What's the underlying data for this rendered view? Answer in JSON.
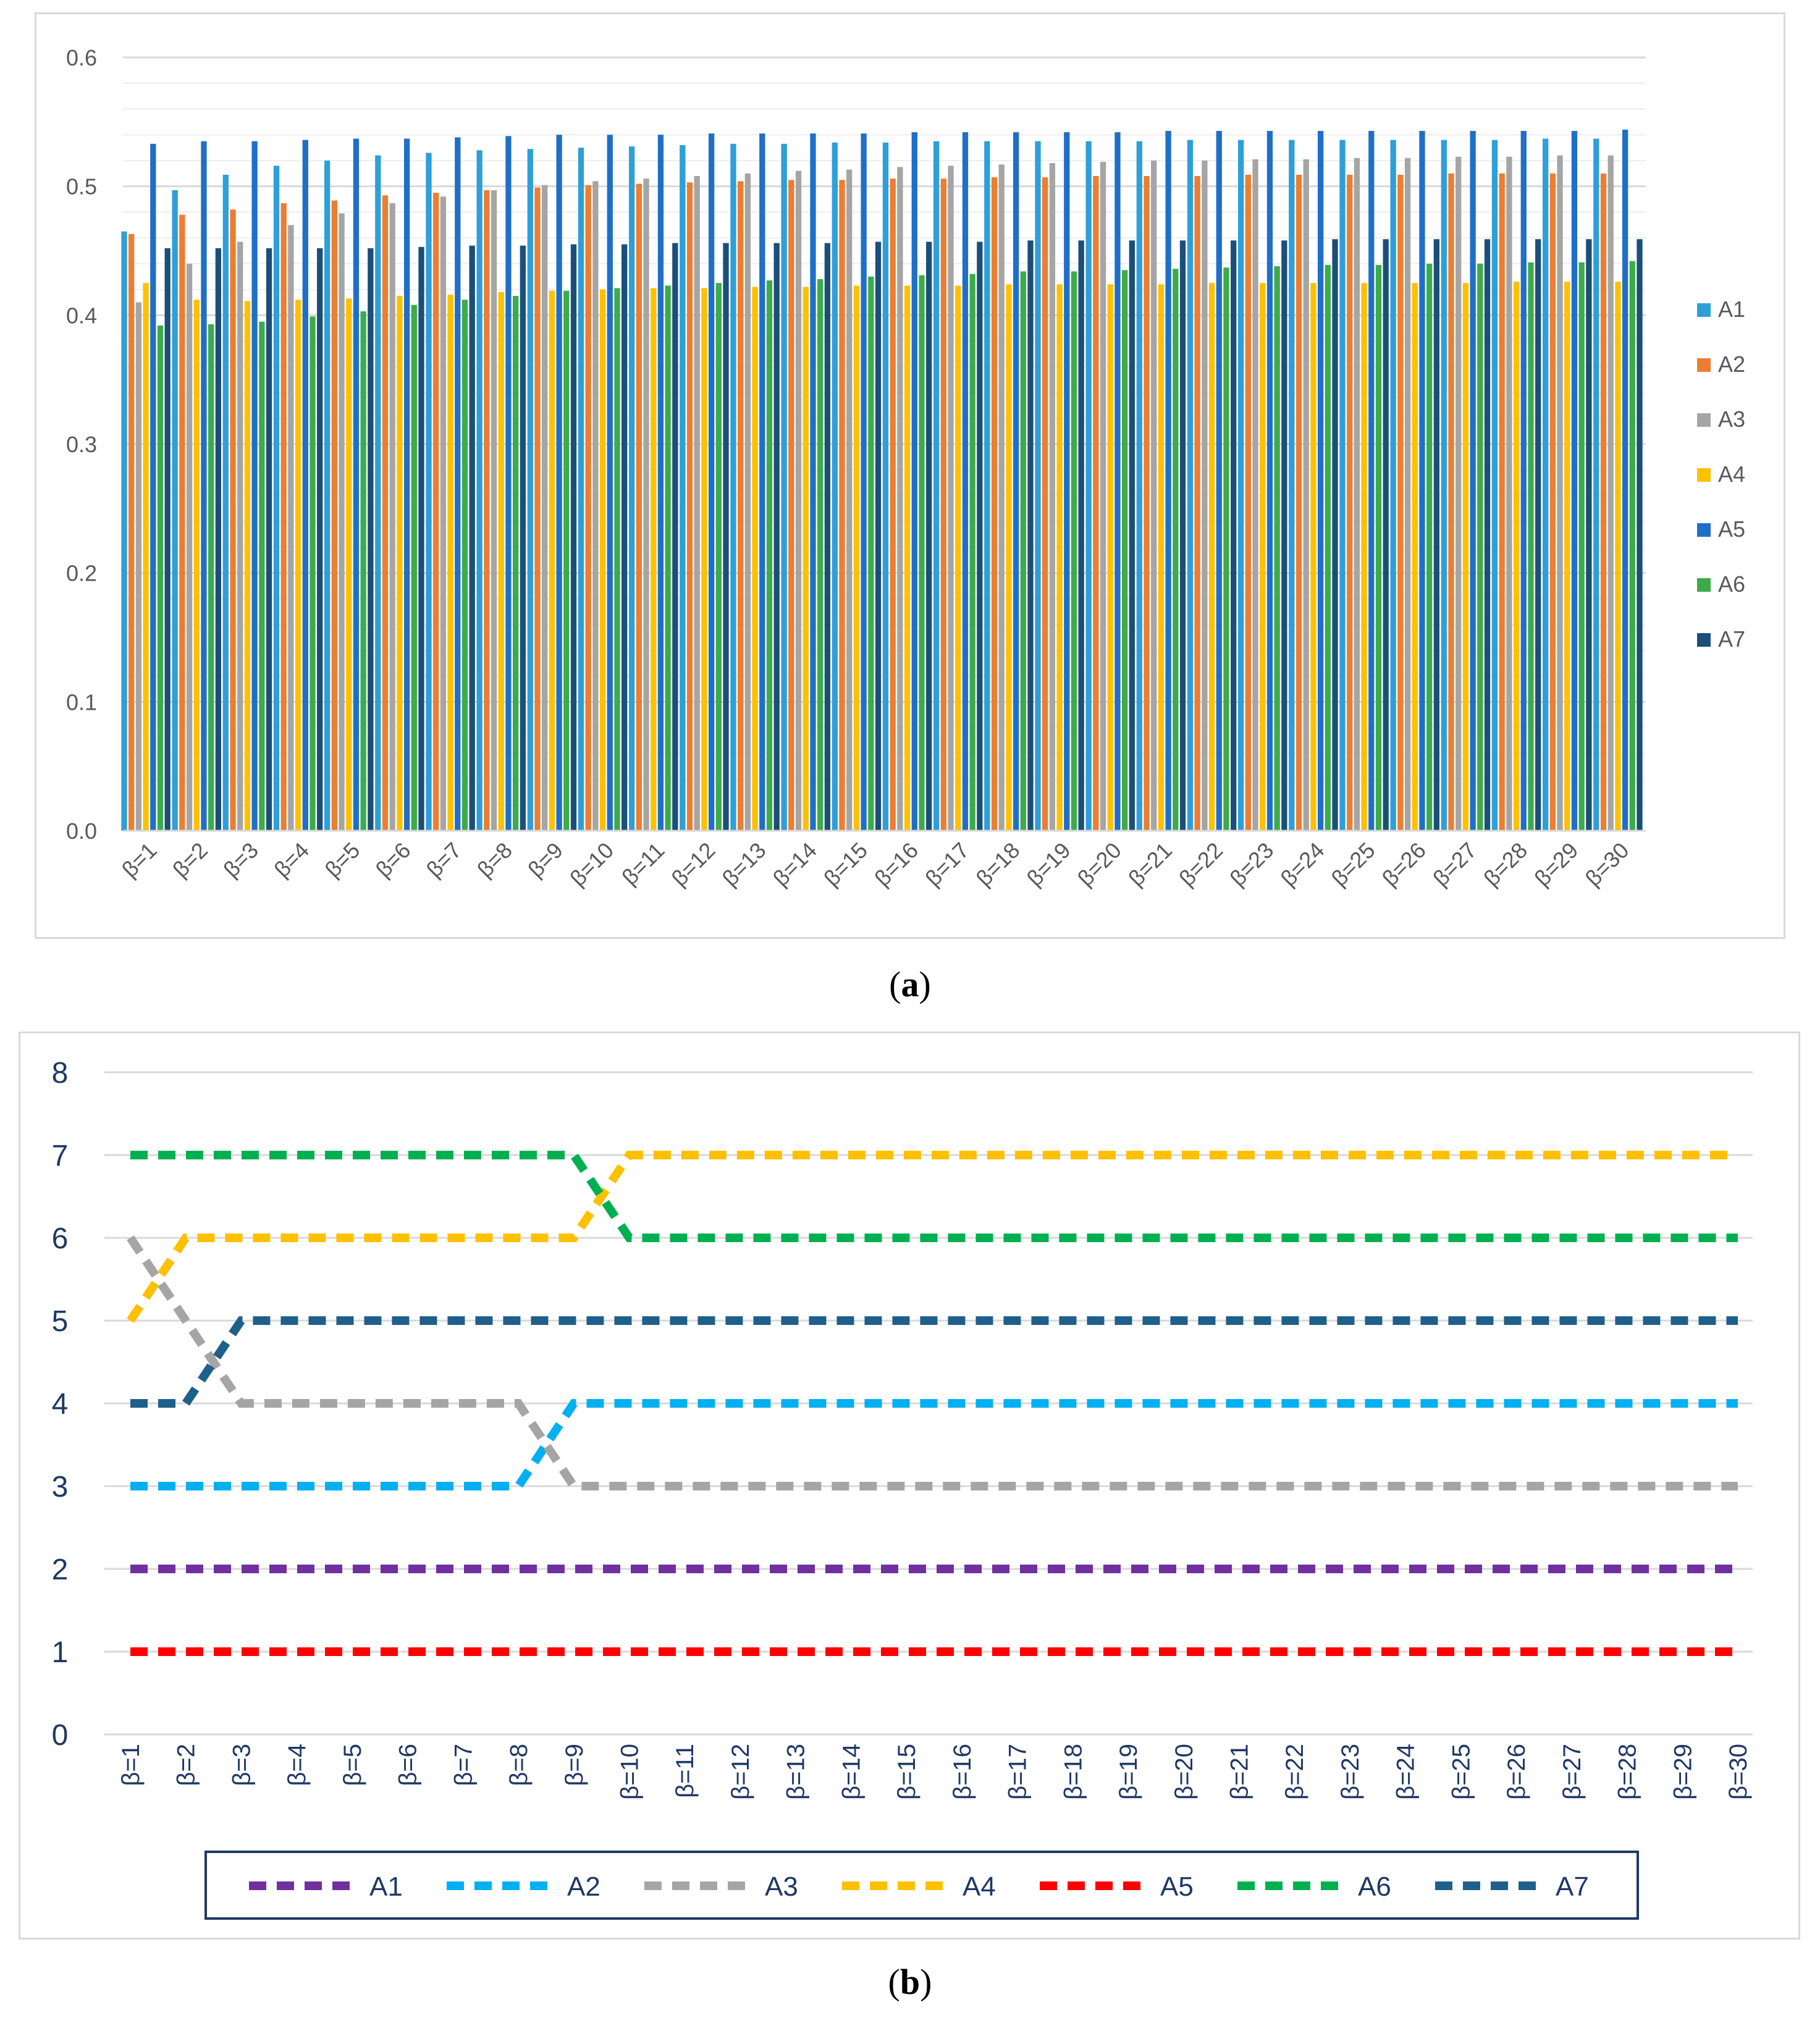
{
  "chart_data": [
    {
      "id": "a",
      "type": "bar",
      "caption_label": "a",
      "title": "",
      "xlabel": "",
      "ylabel": "",
      "ylim": [
        0,
        0.6
      ],
      "yticks": [
        "0.0",
        "0.1",
        "0.2",
        "0.3",
        "0.4",
        "0.5",
        "0.6"
      ],
      "grid": true,
      "legend_position": "right",
      "categories": [
        "β=1",
        "β=2",
        "β=3",
        "β=4",
        "β=5",
        "β=6",
        "β=7",
        "β=8",
        "β=9",
        "β=10",
        "β=11",
        "β=12",
        "β=13",
        "β=14",
        "β=15",
        "β=16",
        "β=17",
        "β=18",
        "β=19",
        "β=20",
        "β=21",
        "β=22",
        "β=23",
        "β=24",
        "β=25",
        "β=26",
        "β=27",
        "β=28",
        "β=29",
        "β=30"
      ],
      "series": [
        {
          "name": "A1",
          "color": "#2e9fd9",
          "values": [
            0.465,
            0.497,
            0.509,
            0.516,
            0.52,
            0.524,
            0.526,
            0.528,
            0.529,
            0.53,
            0.531,
            0.532,
            0.533,
            0.533,
            0.534,
            0.534,
            0.535,
            0.535,
            0.535,
            0.535,
            0.535,
            0.536,
            0.536,
            0.536,
            0.536,
            0.536,
            0.536,
            0.536,
            0.537,
            0.537
          ]
        },
        {
          "name": "A2",
          "color": "#ed7d31",
          "values": [
            0.463,
            0.478,
            0.482,
            0.487,
            0.489,
            0.493,
            0.495,
            0.497,
            0.499,
            0.501,
            0.502,
            0.503,
            0.504,
            0.505,
            0.505,
            0.506,
            0.506,
            0.507,
            0.507,
            0.508,
            0.508,
            0.508,
            0.509,
            0.509,
            0.509,
            0.509,
            0.51,
            0.51,
            0.51,
            0.51
          ]
        },
        {
          "name": "A3",
          "color": "#a5a5a5",
          "values": [
            0.41,
            0.44,
            0.457,
            0.47,
            0.479,
            0.487,
            0.492,
            0.497,
            0.501,
            0.504,
            0.506,
            0.508,
            0.51,
            0.512,
            0.513,
            0.515,
            0.516,
            0.517,
            0.518,
            0.519,
            0.52,
            0.52,
            0.521,
            0.521,
            0.522,
            0.522,
            0.523,
            0.523,
            0.524,
            0.524
          ]
        },
        {
          "name": "A4",
          "color": "#ffc000",
          "values": [
            0.425,
            0.412,
            0.411,
            0.412,
            0.413,
            0.415,
            0.416,
            0.418,
            0.419,
            0.42,
            0.421,
            0.421,
            0.422,
            0.422,
            0.423,
            0.423,
            0.423,
            0.424,
            0.424,
            0.424,
            0.424,
            0.425,
            0.425,
            0.425,
            0.425,
            0.425,
            0.425,
            0.426,
            0.426,
            0.426
          ]
        },
        {
          "name": "A5",
          "color": "#1f6fc9",
          "values": [
            0.533,
            0.535,
            0.535,
            0.536,
            0.537,
            0.537,
            0.538,
            0.539,
            0.54,
            0.54,
            0.54,
            0.541,
            0.541,
            0.541,
            0.541,
            0.542,
            0.542,
            0.542,
            0.542,
            0.542,
            0.543,
            0.543,
            0.543,
            0.543,
            0.543,
            0.543,
            0.543,
            0.543,
            0.543,
            0.544
          ]
        },
        {
          "name": "A6",
          "color": "#3cab4b",
          "values": [
            0.392,
            0.393,
            0.395,
            0.399,
            0.403,
            0.408,
            0.412,
            0.415,
            0.419,
            0.421,
            0.423,
            0.425,
            0.427,
            0.428,
            0.43,
            0.431,
            0.432,
            0.434,
            0.434,
            0.435,
            0.436,
            0.437,
            0.438,
            0.439,
            0.439,
            0.44,
            0.44,
            0.441,
            0.441,
            0.442
          ]
        },
        {
          "name": "A7",
          "color": "#1b4f7a",
          "values": [
            0.452,
            0.452,
            0.452,
            0.452,
            0.452,
            0.453,
            0.454,
            0.454,
            0.455,
            0.455,
            0.456,
            0.456,
            0.456,
            0.456,
            0.457,
            0.457,
            0.457,
            0.458,
            0.458,
            0.458,
            0.458,
            0.458,
            0.458,
            0.459,
            0.459,
            0.459,
            0.459,
            0.459,
            0.459,
            0.459
          ]
        }
      ]
    },
    {
      "id": "b",
      "type": "line",
      "caption_label": "b",
      "title": "",
      "xlabel": "",
      "ylabel": "",
      "ylim": [
        0,
        8
      ],
      "yticks": [
        "0",
        "1",
        "2",
        "3",
        "4",
        "5",
        "6",
        "7",
        "8"
      ],
      "grid": true,
      "legend_position": "bottom",
      "line_style": "dashed",
      "categories": [
        "β=1",
        "β=2",
        "β=3",
        "β=4",
        "β=5",
        "β=6",
        "β=7",
        "β=8",
        "β=9",
        "β=10",
        "β=11",
        "β=12",
        "β=13",
        "β=14",
        "β=15",
        "β=16",
        "β=17",
        "β=18",
        "β=19",
        "β=20",
        "β=21",
        "β=22",
        "β=23",
        "β=24",
        "β=25",
        "β=26",
        "β=27",
        "β=28",
        "β=29",
        "β=30"
      ],
      "series": [
        {
          "name": "A1",
          "color": "#7030a0",
          "values": [
            2,
            2,
            2,
            2,
            2,
            2,
            2,
            2,
            2,
            2,
            2,
            2,
            2,
            2,
            2,
            2,
            2,
            2,
            2,
            2,
            2,
            2,
            2,
            2,
            2,
            2,
            2,
            2,
            2,
            2
          ]
        },
        {
          "name": "A2",
          "color": "#00b0f0",
          "values": [
            3,
            3,
            3,
            3,
            3,
            3,
            3,
            3,
            4,
            4,
            4,
            4,
            4,
            4,
            4,
            4,
            4,
            4,
            4,
            4,
            4,
            4,
            4,
            4,
            4,
            4,
            4,
            4,
            4,
            4
          ]
        },
        {
          "name": "A3",
          "color": "#a5a5a5",
          "values": [
            6,
            5,
            4,
            4,
            4,
            4,
            4,
            4,
            3,
            3,
            3,
            3,
            3,
            3,
            3,
            3,
            3,
            3,
            3,
            3,
            3,
            3,
            3,
            3,
            3,
            3,
            3,
            3,
            3,
            3
          ]
        },
        {
          "name": "A4",
          "color": "#ffc000",
          "values": [
            5,
            6,
            6,
            6,
            6,
            6,
            6,
            6,
            6,
            7,
            7,
            7,
            7,
            7,
            7,
            7,
            7,
            7,
            7,
            7,
            7,
            7,
            7,
            7,
            7,
            7,
            7,
            7,
            7,
            7
          ]
        },
        {
          "name": "A5",
          "color": "#ff0000",
          "values": [
            1,
            1,
            1,
            1,
            1,
            1,
            1,
            1,
            1,
            1,
            1,
            1,
            1,
            1,
            1,
            1,
            1,
            1,
            1,
            1,
            1,
            1,
            1,
            1,
            1,
            1,
            1,
            1,
            1,
            1
          ]
        },
        {
          "name": "A6",
          "color": "#00b050",
          "values": [
            7,
            7,
            7,
            7,
            7,
            7,
            7,
            7,
            7,
            6,
            6,
            6,
            6,
            6,
            6,
            6,
            6,
            6,
            6,
            6,
            6,
            6,
            6,
            6,
            6,
            6,
            6,
            6,
            6,
            6
          ]
        },
        {
          "name": "A7",
          "color": "#1f5f8b",
          "values": [
            4,
            4,
            5,
            5,
            5,
            5,
            5,
            5,
            5,
            5,
            5,
            5,
            5,
            5,
            5,
            5,
            5,
            5,
            5,
            5,
            5,
            5,
            5,
            5,
            5,
            5,
            5,
            5,
            5,
            5
          ]
        }
      ]
    }
  ]
}
